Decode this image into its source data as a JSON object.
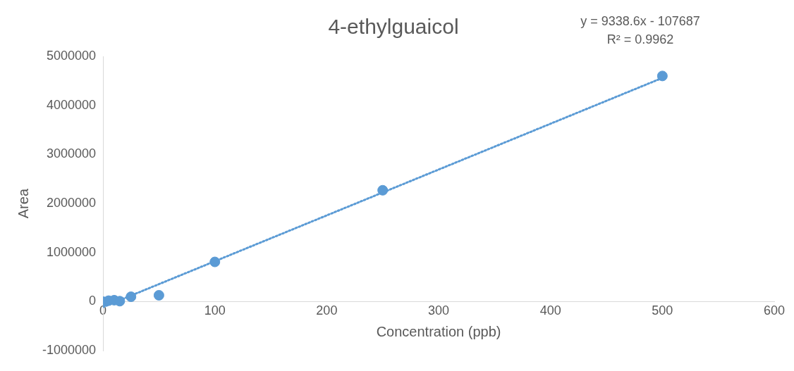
{
  "chart_data": {
    "type": "scatter",
    "title": "4-ethylguaicol",
    "xlabel": "Concentration (ppb)",
    "ylabel": "Area",
    "xlim": [
      0,
      600
    ],
    "xticks": [
      0,
      100,
      200,
      300,
      400,
      500,
      600
    ],
    "ylim": [
      -1000000,
      5000000
    ],
    "yticks": [
      -1000000,
      0,
      1000000,
      2000000,
      3000000,
      4000000,
      5000000
    ],
    "grid": false,
    "legend": false,
    "marker": "circle",
    "series": [
      {
        "type": "scatter",
        "color": "#5b9bd5",
        "x": [
          0,
          5,
          10,
          15,
          25,
          50,
          100,
          250,
          500
        ],
        "values": [
          0,
          20000,
          30000,
          10000,
          100000,
          130000,
          810000,
          2270000,
          4600000
        ]
      },
      {
        "type": "line",
        "color": "#5b9bd5",
        "line_style": "dotted",
        "marker": "none",
        "x": [
          0,
          500
        ],
        "values": [
          -110000,
          4560000
        ]
      }
    ],
    "annotations": [
      "y = 9338.6x - 107687",
      "R² = 0.9962"
    ]
  }
}
